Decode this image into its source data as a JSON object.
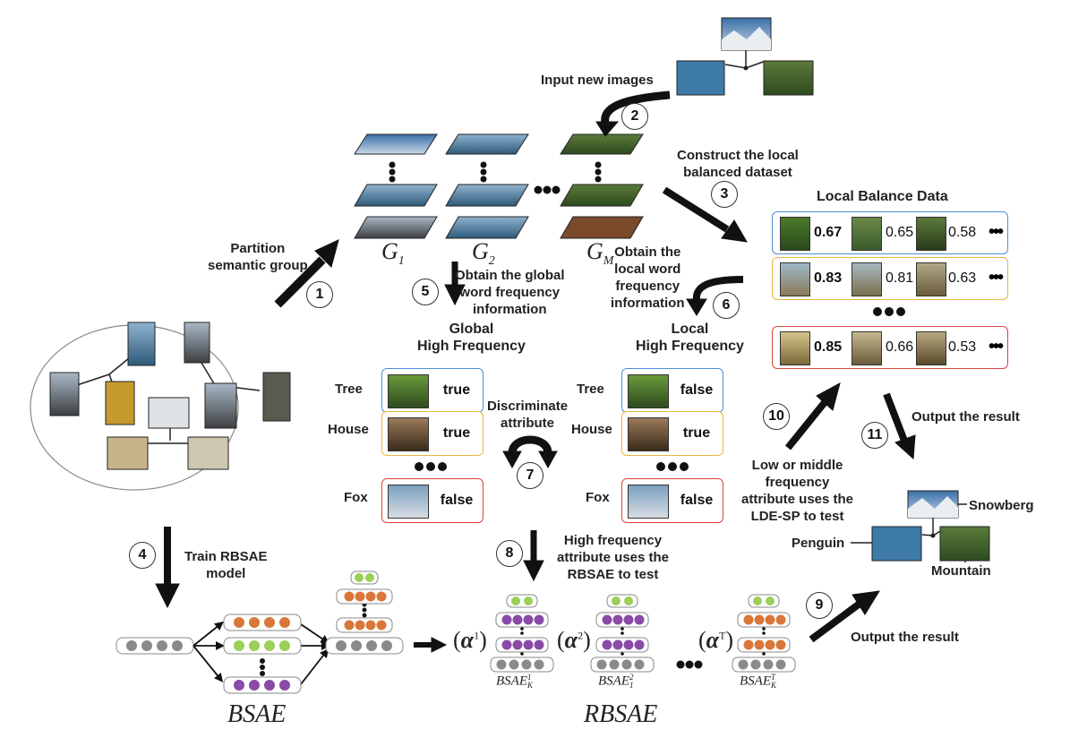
{
  "steps": {
    "s1": {
      "num": "1",
      "label_line1": "Partition",
      "label_line2": "semantic group"
    },
    "s2": {
      "num": "2",
      "label": "Input new images"
    },
    "s3": {
      "num": "3",
      "label_line1": "Construct the local",
      "label_line2": "balanced dataset"
    },
    "s4": {
      "num": "4",
      "label_line1": "Train RBSAE",
      "label_line2": "model"
    },
    "s5": {
      "num": "5",
      "label_line1": "Obtain the global",
      "label_line2": "word frequency",
      "label_line3": "information"
    },
    "s6": {
      "num": "6",
      "label_line1": "Obtain the",
      "label_line2": "local word",
      "label_line3": "frequency",
      "label_line4": "information"
    },
    "s7": {
      "num": "7",
      "label_line1": "Discriminate",
      "label_line2": "attribute"
    },
    "s8": {
      "num": "8",
      "label_line1": "High frequency",
      "label_line2": "attribute uses the",
      "label_line3": "RBSAE to test"
    },
    "s9": {
      "num": "9",
      "label": "Output the result"
    },
    "s10": {
      "num": "10",
      "label_line1": "Low or middle",
      "label_line2": "frequency",
      "label_line3": "attribute uses the",
      "label_line4": "LDE-SP to test"
    },
    "s11": {
      "num": "11",
      "label": "Output the result"
    }
  },
  "groups": {
    "g1": "G",
    "g1_sub": "1",
    "g2": "G",
    "g2_sub": "2",
    "gm": "G",
    "gm_sub": "M"
  },
  "global_hf": {
    "title_line1": "Global",
    "title_line2": "High Frequency",
    "rows": [
      {
        "name": "Tree",
        "value": "true",
        "color": "#4a8fd6"
      },
      {
        "name": "House",
        "value": "true",
        "color": "#e8b640"
      },
      {
        "name": "Fox",
        "value": "false",
        "color": "#d9453f"
      }
    ]
  },
  "local_hf": {
    "title_line1": "Local",
    "title_line2": "High Frequency",
    "rows": [
      {
        "name": "Tree",
        "value": "false",
        "color": "#4a8fd6"
      },
      {
        "name": "House",
        "value": "true",
        "color": "#e8b640"
      },
      {
        "name": "Fox",
        "value": "false",
        "color": "#d9453f"
      }
    ]
  },
  "local_balance": {
    "title": "Local Balance Data",
    "rows": [
      {
        "color": "#4a8fd6",
        "scores": [
          "0.67",
          "0.65",
          "0.58"
        ]
      },
      {
        "color": "#e8b640",
        "scores": [
          "0.83",
          "0.81",
          "0.63"
        ]
      },
      {
        "color": "#d9453f",
        "scores": [
          "0.85",
          "0.66",
          "0.53"
        ]
      }
    ]
  },
  "output_labels": {
    "snowberg": "Snowberg",
    "penguin": "Penguin",
    "mountain": "Mountain"
  },
  "models": {
    "bsae": "BSAE",
    "rbsae": "RBSAE",
    "alpha": "α",
    "alpha1_sup": "1",
    "alpha2_sup": "2",
    "alphat_sup": "T",
    "bsae_k1": "BSAE",
    "bsae_k1_sub": "K",
    "bsae_k1_sup": "1",
    "bsae_12": "BSAE",
    "bsae_12_sub": "1",
    "bsae_12_sup": "2",
    "bsae_kt": "BSAE",
    "bsae_kt_sub": "K",
    "bsae_kt_sup": "T"
  },
  "colors": {
    "blue": "#4a8fd6",
    "yellow": "#e8b640",
    "red": "#d9453f",
    "gray_node": "#8a8a8a",
    "orange_node": "#d9773a",
    "green_node": "#9bcf57",
    "purple_node": "#8a4aa8"
  }
}
